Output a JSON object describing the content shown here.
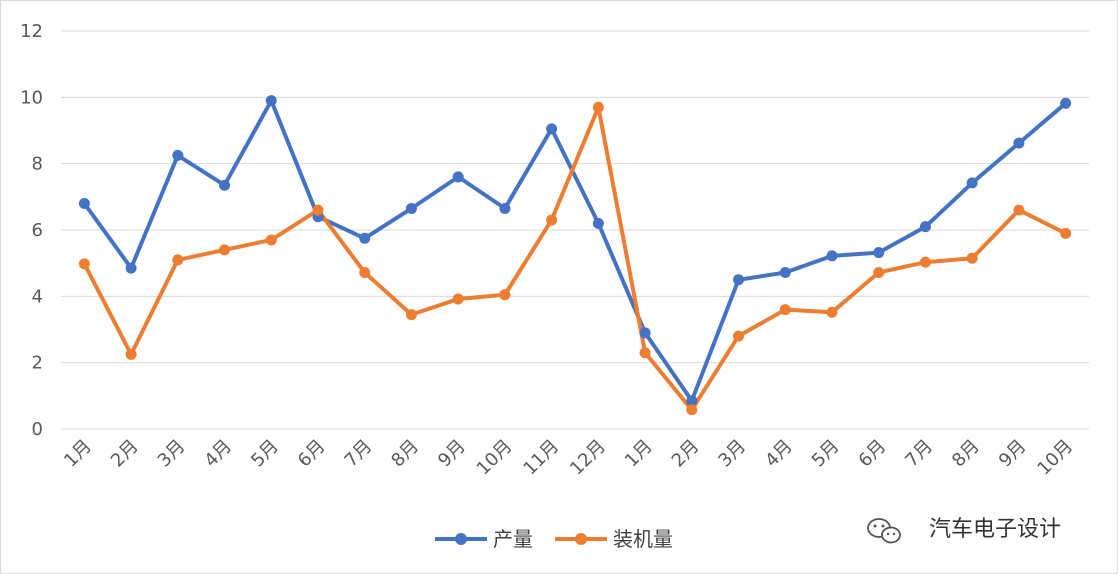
{
  "chart_data": {
    "type": "line",
    "categories": [
      "1月",
      "2月",
      "3月",
      "4月",
      "5月",
      "6月",
      "7月",
      "8月",
      "9月",
      "10月",
      "11月",
      "12月",
      "1月",
      "2月",
      "3月",
      "4月",
      "5月",
      "6月",
      "7月",
      "8月",
      "9月",
      "10月"
    ],
    "series": [
      {
        "name": "产量",
        "color": "#4472c4",
        "values": [
          6.8,
          4.85,
          8.25,
          7.35,
          9.9,
          6.4,
          5.75,
          6.65,
          7.6,
          6.65,
          9.05,
          6.2,
          2.9,
          0.85,
          4.5,
          4.72,
          5.22,
          5.32,
          6.1,
          7.42,
          8.62,
          9.82
        ]
      },
      {
        "name": "装机量",
        "color": "#ed7d31",
        "values": [
          4.98,
          2.25,
          5.1,
          5.4,
          5.7,
          6.6,
          4.72,
          3.45,
          3.92,
          4.05,
          6.3,
          9.7,
          2.3,
          0.58,
          2.8,
          3.6,
          3.52,
          4.72,
          5.03,
          5.15,
          6.6,
          5.9
        ]
      }
    ],
    "ylim": [
      0,
      12
    ],
    "yticks": [
      "0",
      "2",
      "4",
      "6",
      "8",
      "10",
      "12"
    ],
    "grid": true,
    "legend_position": "bottom"
  },
  "watermark": {
    "text": "汽车电子设计",
    "icon": "wechat-icon"
  }
}
